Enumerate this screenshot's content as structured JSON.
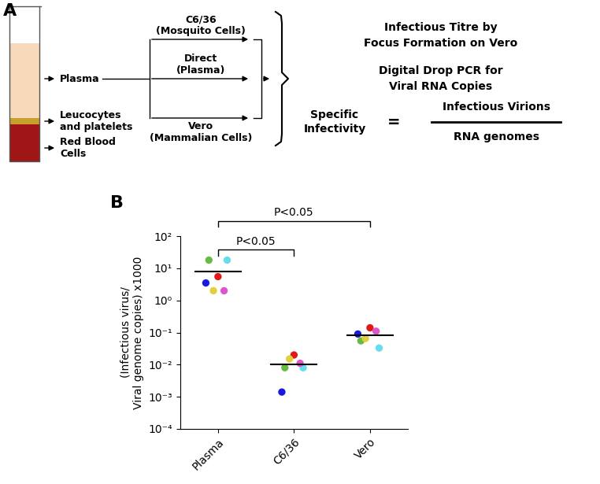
{
  "diagram": {
    "panel_label": "A",
    "tube": {
      "layers": [
        {
          "label": "Plasma",
          "color": "#f5d9b8"
        },
        {
          "label": "Leucocytes\nand platelets",
          "color": "#c8a030"
        },
        {
          "label": "Red Blood\nCells",
          "color": "#a01515"
        }
      ]
    },
    "branches": [
      {
        "label": "C6/36\n(Mosquito Cells)"
      },
      {
        "label": "Direct\n(Plasma)"
      },
      {
        "label": "Vero\n(Mammalian Cells)"
      }
    ],
    "outputs": [
      "Infectious Titre by\nFocus Formation on Vero",
      "Digital Drop PCR for\nViral RNA Copies"
    ],
    "formula": {
      "name": "Specific\nInfectivity",
      "operator": "=",
      "numerator": "Infectious Virions",
      "denominator": "RNA genomes"
    }
  },
  "chart_data": {
    "type": "scatter",
    "panel_label": "B",
    "y_label": "(Infectious virus/\nViral genome copies) x1000",
    "categories": [
      "Plasma",
      "C6/36",
      "Vero"
    ],
    "series": [
      {
        "color": "#66bb44",
        "values": [
          18,
          0.008,
          0.055
        ]
      },
      {
        "color": "#66ddee",
        "values": [
          18,
          0.008,
          0.033
        ]
      },
      {
        "color": "#1a1adc",
        "values": [
          3.5,
          0.0014,
          0.09
        ]
      },
      {
        "color": "#e01818",
        "values": [
          5.5,
          0.02,
          0.14
        ]
      },
      {
        "color": "#e0d040",
        "values": [
          2,
          0.015,
          0.065
        ]
      },
      {
        "color": "#dd55cc",
        "values": [
          2,
          0.011,
          0.11
        ]
      }
    ],
    "marker": "o",
    "means": [
      8,
      0.01,
      0.08
    ],
    "comparisons": [
      {
        "categories": [
          "Plasma",
          "Vero"
        ],
        "label": "P<0.05"
      },
      {
        "categories": [
          "Plasma",
          "C6/36"
        ],
        "label": "P<0.05"
      }
    ],
    "log": "y",
    "ylim": [
      0.0001,
      100
    ],
    "yticks": [
      {
        "value": 0.0001,
        "label": "10⁻⁴"
      },
      {
        "value": 0.001,
        "label": "10⁻³"
      },
      {
        "value": 0.01,
        "label": "10⁻²"
      },
      {
        "value": 0.1,
        "label": "10⁻¹"
      },
      {
        "value": 1,
        "label": "10⁰"
      },
      {
        "value": 10,
        "label": "10¹"
      },
      {
        "value": 100,
        "label": "10²"
      }
    ]
  }
}
